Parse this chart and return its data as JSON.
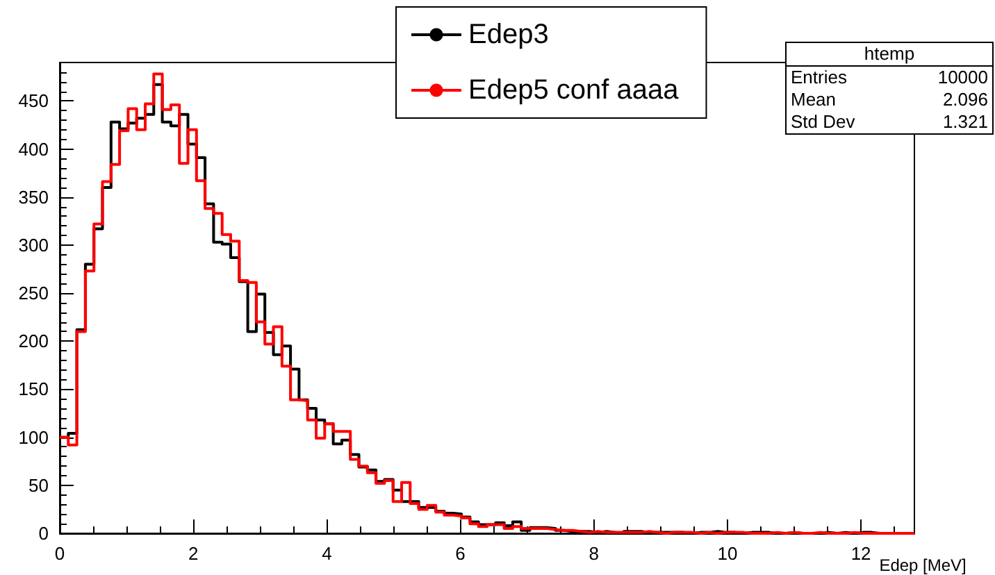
{
  "chart_data": {
    "type": "histogram",
    "xlabel": "Edep [MeV]",
    "bins": [
      0,
      0.128,
      0.256,
      0.384,
      0.512,
      0.64,
      0.768,
      0.896,
      1.024,
      1.152,
      1.28,
      1.408,
      1.536,
      1.664,
      1.792,
      1.92,
      2.048,
      2.176,
      2.304,
      2.432,
      2.56,
      2.688,
      2.816,
      2.944,
      3.072,
      3.2,
      3.328,
      3.456,
      3.584,
      3.712,
      3.84,
      3.968,
      4.096,
      4.224,
      4.352,
      4.48,
      4.608,
      4.736,
      4.864,
      4.992,
      5.12,
      5.248,
      5.376,
      5.504,
      5.632,
      5.76,
      5.888,
      6.016,
      6.144,
      6.272,
      6.4,
      6.528,
      6.656,
      6.784,
      6.912,
      7.04,
      7.168,
      7.296,
      7.424,
      7.552,
      7.68,
      7.808,
      7.936,
      8.064,
      8.192,
      8.32,
      8.448,
      8.576,
      8.704,
      8.832,
      8.96,
      9.088,
      9.216,
      9.344,
      9.472,
      9.6,
      9.728,
      9.856,
      9.984,
      10.112,
      10.24,
      10.368,
      10.496,
      10.624,
      10.752,
      10.88,
      11.008,
      11.136,
      11.264,
      11.392,
      11.52,
      11.648,
      11.776,
      11.904,
      12.032,
      12.16,
      12.288,
      12.416,
      12.544,
      12.672,
      12.8
    ],
    "series": [
      {
        "name": "Edep3",
        "color": "#000000",
        "values": [
          100,
          104,
          212,
          280,
          317,
          360,
          428,
          421,
          427,
          432,
          436,
          467,
          428,
          424,
          436,
          405,
          391,
          343,
          303,
          301,
          287,
          262,
          210,
          249,
          209,
          186,
          195,
          171,
          139,
          130,
          118,
          114,
          93,
          97,
          82,
          69,
          66,
          54,
          56,
          45,
          33,
          33,
          27,
          27,
          23,
          21,
          20,
          17,
          12,
          9,
          9,
          11,
          8,
          12,
          3,
          6,
          6,
          5,
          3,
          2,
          2,
          2,
          1,
          2,
          1,
          0,
          2,
          2,
          1,
          1,
          1,
          1,
          1,
          0,
          1,
          1,
          2,
          1,
          1,
          0,
          1,
          1,
          1,
          0,
          0,
          1,
          0,
          0,
          0,
          1,
          0,
          1,
          0,
          1,
          1,
          0,
          0,
          0,
          0,
          0
        ]
      },
      {
        "name": "Edep5 conf aaaa",
        "color": "#ff0000",
        "values": [
          100,
          92,
          210,
          273,
          322,
          366,
          384,
          419,
          442,
          420,
          447,
          478,
          441,
          446,
          385,
          420,
          367,
          338,
          333,
          311,
          304,
          263,
          261,
          220,
          197,
          215,
          174,
          139,
          138,
          118,
          99,
          114,
          106,
          106,
          77,
          70,
          63,
          52,
          55,
          33,
          53,
          31,
          25,
          29,
          22,
          19,
          18,
          16,
          10,
          7,
          9,
          9,
          5,
          7,
          5,
          5,
          5,
          4,
          3,
          3,
          2,
          1,
          2,
          1,
          1,
          1,
          1,
          1,
          2,
          1,
          0,
          1,
          1,
          1,
          0,
          1,
          0,
          1,
          1,
          1,
          0,
          0,
          0,
          1,
          0,
          1,
          0,
          0,
          1,
          0,
          0,
          0,
          1,
          0,
          0,
          0,
          0,
          0,
          0,
          0
        ]
      }
    ],
    "xlim": [
      0,
      12.8
    ],
    "xticks": [
      0,
      {
        "value": 0.5,
        "label": null
      },
      {
        "value": 1,
        "label": null
      },
      {
        "value": 1.5,
        "label": null
      },
      2,
      {
        "value": 2.5,
        "label": null
      },
      {
        "value": 3,
        "label": null
      },
      {
        "value": 3.5,
        "label": null
      },
      4,
      {
        "value": 4.5,
        "label": null
      },
      {
        "value": 5,
        "label": null
      },
      {
        "value": 5.5,
        "label": null
      },
      6,
      {
        "value": 6.5,
        "label": null
      },
      {
        "value": 7,
        "label": null
      },
      {
        "value": 7.5,
        "label": null
      },
      8,
      {
        "value": 8.5,
        "label": null
      },
      {
        "value": 9,
        "label": null
      },
      {
        "value": 9.5,
        "label": null
      },
      10,
      {
        "value": 10.5,
        "label": null
      },
      {
        "value": 11,
        "label": null
      },
      {
        "value": 11.5,
        "label": null
      },
      12,
      {
        "value": 12.5,
        "label": null
      }
    ],
    "ylim": [
      0,
      490
    ],
    "yticks": [
      0,
      {
        "value": 10,
        "label": null
      },
      {
        "value": 20,
        "label": null
      },
      {
        "value": 30,
        "label": null
      },
      {
        "value": 40,
        "label": null
      },
      50,
      {
        "value": 60,
        "label": null
      },
      {
        "value": 70,
        "label": null
      },
      {
        "value": 80,
        "label": null
      },
      {
        "value": 90,
        "label": null
      },
      100,
      {
        "value": 110,
        "label": null
      },
      {
        "value": 120,
        "label": null
      },
      {
        "value": 130,
        "label": null
      },
      {
        "value": 140,
        "label": null
      },
      150,
      {
        "value": 160,
        "label": null
      },
      {
        "value": 170,
        "label": null
      },
      {
        "value": 180,
        "label": null
      },
      {
        "value": 190,
        "label": null
      },
      200,
      {
        "value": 210,
        "label": null
      },
      {
        "value": 220,
        "label": null
      },
      {
        "value": 230,
        "label": null
      },
      {
        "value": 240,
        "label": null
      },
      250,
      {
        "value": 260,
        "label": null
      },
      {
        "value": 270,
        "label": null
      },
      {
        "value": 280,
        "label": null
      },
      {
        "value": 290,
        "label": null
      },
      300,
      {
        "value": 310,
        "label": null
      },
      {
        "value": 320,
        "label": null
      },
      {
        "value": 330,
        "label": null
      },
      {
        "value": 340,
        "label": null
      },
      350,
      {
        "value": 360,
        "label": null
      },
      {
        "value": 370,
        "label": null
      },
      {
        "value": 380,
        "label": null
      },
      {
        "value": 390,
        "label": null
      },
      400,
      {
        "value": 410,
        "label": null
      },
      {
        "value": 420,
        "label": null
      },
      {
        "value": 430,
        "label": null
      },
      {
        "value": 440,
        "label": null
      },
      450,
      {
        "value": 460,
        "label": null
      },
      {
        "value": 470,
        "label": null
      },
      {
        "value": 480,
        "label": null
      }
    ],
    "grid": false,
    "legend": "top",
    "annotations": [
      "htemp",
      "Entries 10000",
      "Mean 2.096",
      "Std Dev 1.321"
    ]
  }
}
